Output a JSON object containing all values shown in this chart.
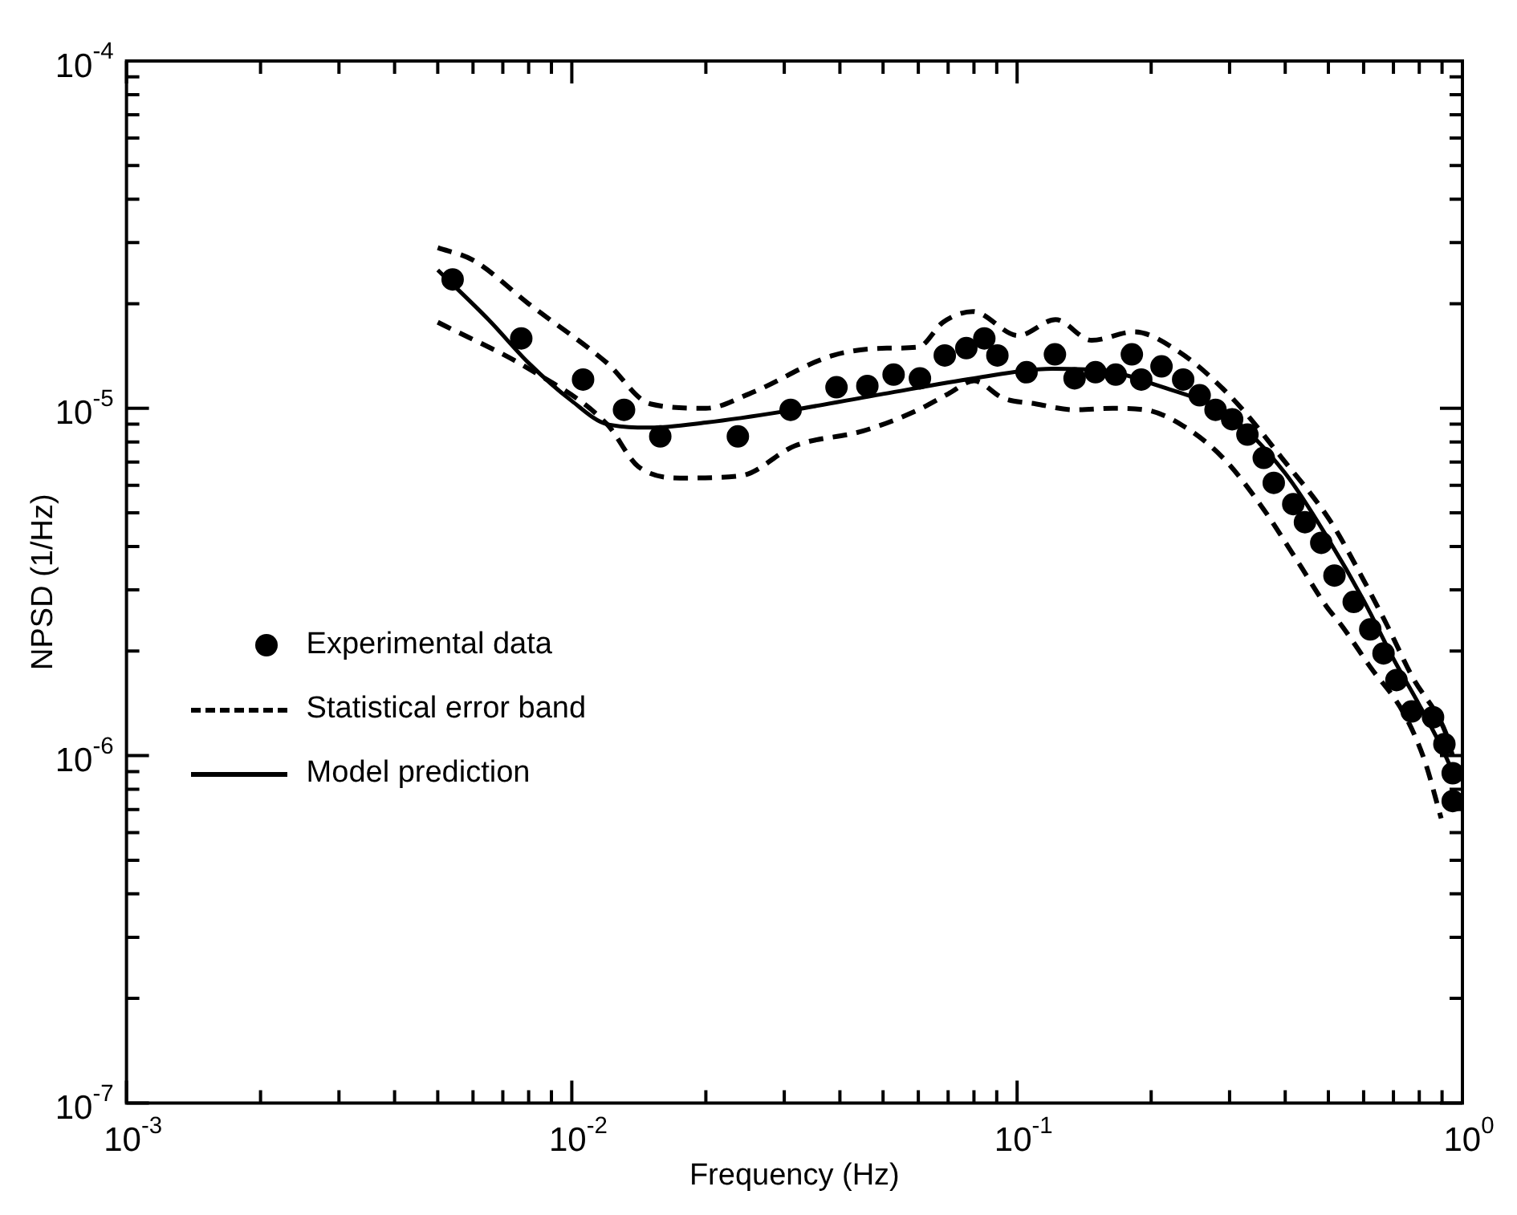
{
  "chart_data": {
    "type": "line",
    "xlabel": "Frequency (Hz)",
    "ylabel": "NPSD (1/Hz)",
    "log": "xy",
    "grid": false,
    "legend": "left",
    "xlim": [
      0.001,
      1
    ],
    "ylim": [
      1e-07,
      0.0001
    ],
    "xticks": [
      {
        "value": 0.001,
        "label": "10$^{-3}$"
      },
      {
        "value": 0.002,
        "label": null
      },
      {
        "value": 0.003,
        "label": null
      },
      {
        "value": 0.004,
        "label": null
      },
      {
        "value": 0.005,
        "label": null
      },
      {
        "value": 0.006,
        "label": null
      },
      {
        "value": 0.007,
        "label": null
      },
      {
        "value": 0.008,
        "label": null
      },
      {
        "value": 0.009,
        "label": null
      },
      {
        "value": 0.01,
        "label": "10$^{-2}$"
      },
      {
        "value": 0.02,
        "label": null
      },
      {
        "value": 0.03,
        "label": null
      },
      {
        "value": 0.04,
        "label": null
      },
      {
        "value": 0.05,
        "label": null
      },
      {
        "value": 0.06,
        "label": null
      },
      {
        "value": 0.07,
        "label": null
      },
      {
        "value": 0.08,
        "label": null
      },
      {
        "value": 0.09,
        "label": null
      },
      {
        "value": 0.1,
        "label": "10$^{-1}$"
      },
      {
        "value": 0.2,
        "label": null
      },
      {
        "value": 0.3,
        "label": null
      },
      {
        "value": 0.4,
        "label": null
      },
      {
        "value": 0.5,
        "label": null
      },
      {
        "value": 0.6,
        "label": null
      },
      {
        "value": 0.7,
        "label": null
      },
      {
        "value": 0.8,
        "label": null
      },
      {
        "value": 0.9,
        "label": null
      },
      {
        "value": 1,
        "label": "10$^{0}$"
      }
    ],
    "yticks": [
      {
        "value": 1e-07,
        "label": "10$^{-7}$"
      },
      {
        "value": 2e-07,
        "label": null
      },
      {
        "value": 3e-07,
        "label": null
      },
      {
        "value": 4e-07,
        "label": null
      },
      {
        "value": 5e-07,
        "label": null
      },
      {
        "value": 6e-07,
        "label": null
      },
      {
        "value": 7e-07,
        "label": null
      },
      {
        "value": 8e-07,
        "label": null
      },
      {
        "value": 9e-07,
        "label": null
      },
      {
        "value": 1e-06,
        "label": "10$^{-6}$"
      },
      {
        "value": 2e-06,
        "label": null
      },
      {
        "value": 3e-06,
        "label": null
      },
      {
        "value": 4e-06,
        "label": null
      },
      {
        "value": 5e-06,
        "label": null
      },
      {
        "value": 6e-06,
        "label": null
      },
      {
        "value": 7e-06,
        "label": null
      },
      {
        "value": 8e-06,
        "label": null
      },
      {
        "value": 9e-06,
        "label": null
      },
      {
        "value": 1e-05,
        "label": "10$^{-5}$"
      },
      {
        "value": 2e-05,
        "label": null
      },
      {
        "value": 3e-05,
        "label": null
      },
      {
        "value": 4e-05,
        "label": null
      },
      {
        "value": 5e-05,
        "label": null
      },
      {
        "value": 6e-05,
        "label": null
      },
      {
        "value": 7e-05,
        "label": null
      },
      {
        "value": 8e-05,
        "label": null
      },
      {
        "value": 9e-05,
        "label": null
      },
      {
        "value": 0.0001,
        "label": "10$^{-4}$"
      }
    ],
    "series": [
      {
        "name": "Experimental data",
        "type": "scatter",
        "color": "#000000",
        "marker": "circle",
        "x": [
          0.0054,
          0.0077,
          0.0106,
          0.0131,
          0.0158,
          0.0236,
          0.031,
          0.0393,
          0.0461,
          0.0528,
          0.0605,
          0.0688,
          0.0769,
          0.0844,
          0.0903,
          0.105,
          0.1216,
          0.1346,
          0.15,
          0.1665,
          0.181,
          0.19,
          0.211,
          0.236,
          0.257,
          0.279,
          0.304,
          0.329,
          0.358,
          0.377,
          0.417,
          0.443,
          0.482,
          0.516,
          0.57,
          0.621,
          0.665,
          0.711,
          0.769,
          0.859,
          0.911,
          0.951,
          0.951
        ],
        "values": [
          2.35e-05,
          1.59e-05,
          1.21e-05,
          9.9e-06,
          8.3e-06,
          8.3e-06,
          9.9e-06,
          1.15e-05,
          1.16e-05,
          1.25e-05,
          1.22e-05,
          1.42e-05,
          1.49e-05,
          1.59e-05,
          1.42e-05,
          1.27e-05,
          1.43e-05,
          1.22e-05,
          1.27e-05,
          1.25e-05,
          1.43e-05,
          1.21e-05,
          1.32e-05,
          1.21e-05,
          1.09e-05,
          9.9e-06,
          9.3e-06,
          8.4e-06,
          7.2e-06,
          6.1e-06,
          5.3e-06,
          4.7e-06,
          4.1e-06,
          3.3e-06,
          2.77e-06,
          2.31e-06,
          1.97e-06,
          1.65e-06,
          1.34e-06,
          1.29e-06,
          1.08e-06,
          8.9e-07,
          7.4e-07
        ]
      },
      {
        "name": "Statistical error band",
        "color": "#000000",
        "line_style": "dashed",
        "marker": "none",
        "x": [
          0.005,
          0.006,
          0.008,
          0.012,
          0.015,
          0.02,
          0.025,
          0.0386,
          0.051,
          0.06,
          0.0682,
          0.0795,
          0.1006,
          0.122,
          0.147,
          0.183,
          0.23,
          0.304,
          0.393,
          0.507,
          0.6,
          0.68,
          0.769,
          0.918,
          0.95
        ],
        "values": [
          2.9e-05,
          2.67e-05,
          2e-05,
          1.35e-05,
          1.03e-05,
          1e-05,
          1.1e-05,
          1.42e-05,
          1.49e-05,
          1.5e-05,
          1.77e-05,
          1.9e-05,
          1.62e-05,
          1.8e-05,
          1.57e-05,
          1.66e-05,
          1.46e-05,
          1.07e-05,
          7.2e-06,
          4.7e-06,
          3.2e-06,
          2.35e-06,
          1.7e-06,
          1.16e-06,
          1e-06
        ]
      },
      {
        "color": "#000000",
        "line_style": "dashed",
        "marker": "none",
        "x": [
          0.005,
          0.008,
          0.012,
          0.0141,
          0.0178,
          0.024,
          0.0317,
          0.045,
          0.059,
          0.07,
          0.08,
          0.093,
          0.11,
          0.135,
          0.164,
          0.194,
          0.236,
          0.29,
          0.351,
          0.428,
          0.494,
          0.538,
          0.621,
          0.737,
          0.822,
          0.896
        ],
        "values": [
          1.77e-05,
          1.3e-05,
          9e-06,
          6.8e-06,
          6.3e-06,
          6.4e-06,
          7.8e-06,
          8.6e-06,
          9.8e-06,
          1.1e-05,
          1.2e-05,
          1.07e-05,
          1.03e-05,
          9.9e-06,
          1e-05,
          9.9e-06,
          8.9e-06,
          7.2e-06,
          5.3e-06,
          3.6e-06,
          2.7e-06,
          2.35e-06,
          1.8e-06,
          1.33e-06,
          9.7e-07,
          6.6e-07
        ]
      },
      {
        "name": "Model prediction",
        "color": "#000000",
        "line_style": "solid",
        "marker": "none",
        "x": [
          0.005,
          0.0065,
          0.008,
          0.01,
          0.012,
          0.015,
          0.02,
          0.03,
          0.05,
          0.08,
          0.12,
          0.16,
          0.2,
          0.3,
          0.4,
          0.5,
          0.6,
          0.7,
          0.8,
          0.9,
          0.95
        ],
        "values": [
          2.5e-05,
          1.8e-05,
          1.35e-05,
          1.05e-05,
          9e-06,
          8.8e-06,
          9.1e-06,
          9.8e-06,
          1.1e-05,
          1.22e-05,
          1.3e-05,
          1.28e-05,
          1.18e-05,
          9.5e-06,
          6.5e-06,
          4.2e-06,
          2.8e-06,
          1.9e-06,
          1.4e-06,
          1.05e-06,
          9e-07
        ]
      }
    ]
  }
}
